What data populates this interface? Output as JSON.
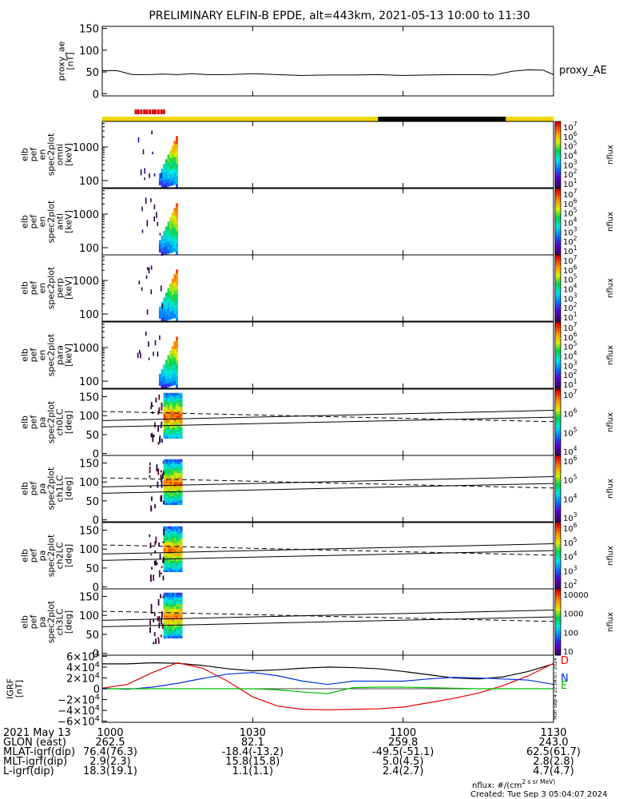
{
  "title": "PRELIMINARY ELFIN-B EPDE, alt=443km, 2021-05-13 10:00 to 11:30",
  "chart_data": {
    "type": "line",
    "time_range": [
      "10:00",
      "11:30"
    ],
    "x_ticks": [
      "1000",
      "1030",
      "1100",
      "1130"
    ],
    "x_tick_minutes": [
      0,
      30,
      60,
      90
    ],
    "proxy_ae": {
      "ylabel": [
        "proxy_ae",
        "[nT]"
      ],
      "legend": "proxy_AE",
      "ylim": [
        -5,
        155
      ],
      "yticks": [
        "150",
        "100",
        "50",
        "0"
      ],
      "ytick_values": [
        150,
        100,
        50,
        0
      ],
      "x_minutes": [
        0,
        3,
        6,
        9,
        12,
        15,
        18,
        21,
        25,
        30,
        35,
        40,
        45,
        50,
        55,
        60,
        65,
        70,
        75,
        78,
        82,
        85,
        88,
        90
      ],
      "values": [
        53,
        53,
        44,
        44,
        45,
        44,
        46,
        44,
        44,
        46,
        44,
        42,
        43,
        43,
        44,
        42,
        43,
        44,
        44,
        43,
        52,
        55,
        54,
        44
      ]
    },
    "status_bar": {
      "segments": [
        {
          "color": "#f2d400",
          "x_minutes": [
            0,
            55
          ]
        },
        {
          "color": "#000000",
          "x_minutes": [
            55,
            80.5
          ]
        },
        {
          "color": "#f2d400",
          "x_minutes": [
            80.5,
            90
          ]
        }
      ],
      "red_marks_x_minutes": [
        6.7,
        7.2,
        7.8,
        8.4,
        8.9,
        9.5,
        10.1,
        10.6,
        11.2,
        11.8,
        12.3
      ]
    },
    "spectrograms": [
      {
        "ylabel": [
          "elb",
          "pef",
          "en",
          "spec2plot",
          "omni",
          "[keV]"
        ],
        "type": "energy",
        "yticks": [
          "1000",
          "100"
        ],
        "log": true,
        "cb_ticks": [
          "10^7",
          "10^6",
          "10^5",
          "10^4",
          "10^3",
          "10^2",
          "10^1"
        ],
        "cb_label": "nflux"
      },
      {
        "ylabel": [
          "elb",
          "pef",
          "en",
          "spec2plot",
          "anti",
          "[keV]"
        ],
        "type": "energy",
        "yticks": [
          "1000",
          "100"
        ],
        "log": true,
        "cb_ticks": [
          "10^7",
          "10^6",
          "10^5",
          "10^4",
          "10^3",
          "10^2",
          "10^1"
        ],
        "cb_label": "nflux"
      },
      {
        "ylabel": [
          "elb",
          "pef",
          "en",
          "spec2plot",
          "perp",
          "[keV]"
        ],
        "type": "energy",
        "yticks": [
          "1000",
          "100"
        ],
        "log": true,
        "cb_ticks": [
          "10^7",
          "10^6",
          "10^5",
          "10^4",
          "10^3",
          "10^2",
          "10^1"
        ],
        "cb_label": "nflux"
      },
      {
        "ylabel": [
          "elb",
          "pef",
          "en",
          "spec2plot",
          "para",
          "[keV]"
        ],
        "type": "energy",
        "yticks": [
          "1000",
          "100"
        ],
        "log": true,
        "cb_ticks": [
          "10^7",
          "10^6",
          "10^5",
          "10^4",
          "10^3",
          "10^2",
          "10^1"
        ],
        "cb_label": "nflux"
      },
      {
        "ylabel": [
          "elb",
          "pef",
          "pa",
          "spec2plot",
          "ch0LC",
          "[deg]"
        ],
        "type": "pitch",
        "yticks": [
          "150",
          "100",
          "50",
          "0"
        ],
        "log": false,
        "cb_ticks": [
          "10^7",
          "10^6",
          "10^5",
          "10^4"
        ],
        "cb_label": "nflux"
      },
      {
        "ylabel": [
          "elb",
          "pef",
          "pa",
          "spec2plot",
          "ch1LC",
          "[deg]"
        ],
        "type": "pitch",
        "yticks": [
          "150",
          "100",
          "50",
          "0"
        ],
        "log": false,
        "cb_ticks": [
          "10^6",
          "10^5",
          "10^4",
          "10^3"
        ],
        "cb_label": "nflux"
      },
      {
        "ylabel": [
          "elb",
          "pef",
          "pa",
          "spec2plot",
          "ch2LC",
          "[deg]"
        ],
        "type": "pitch",
        "yticks": [
          "150",
          "100",
          "50",
          "0"
        ],
        "log": false,
        "cb_ticks": [
          "10^6",
          "10^5",
          "10^4",
          "10^3",
          "10^2"
        ],
        "cb_label": "nflux"
      },
      {
        "ylabel": [
          "elb",
          "pef",
          "pa",
          "spec2plot",
          "ch3LC",
          "[deg]"
        ],
        "type": "pitch",
        "yticks": [
          "150",
          "100",
          "50",
          "0"
        ],
        "log": false,
        "cb_ticks": [
          "10000",
          "1000",
          "100",
          "10"
        ],
        "cb_label": "nflux"
      }
    ],
    "pitch_lines": {
      "solid_upper_deg": [
        87,
        114
      ],
      "dashed_upper_deg": [
        111,
        84
      ],
      "solid_lower_deg": [
        70,
        96
      ]
    },
    "igrf": {
      "ylabel": [
        "IGRF",
        "[nT]"
      ],
      "ylim": [
        -62000,
        62000
      ],
      "yticks": [
        "6×10^4",
        "4×10^4",
        "2×10^4",
        "0",
        "−2×10^4",
        "−4×10^4",
        "−6×10^4"
      ],
      "ytick_values": [
        60000,
        40000,
        20000,
        0,
        -20000,
        -40000,
        -60000
      ],
      "legend": [
        {
          "label": "D",
          "color": "#e00000"
        },
        {
          "label": "N",
          "color": "#0030e0"
        },
        {
          "label": "E",
          "color": "#00c000"
        }
      ],
      "side_label": "Mon Sep  4 22:04:07 2024",
      "x_minutes": [
        0,
        5,
        10,
        15,
        20,
        25,
        30,
        35,
        40,
        45,
        50,
        55,
        60,
        65,
        70,
        75,
        80,
        85,
        90
      ],
      "series": [
        {
          "name": "black",
          "color": "#000000",
          "values": [
            46000,
            46000,
            48000,
            47000,
            43000,
            37000,
            33000,
            35000,
            38000,
            40000,
            39000,
            37000,
            32000,
            26000,
            20000,
            18000,
            22000,
            32000,
            46000
          ]
        },
        {
          "name": "D",
          "color": "#e00000",
          "values": [
            1000,
            8000,
            30000,
            48000,
            38000,
            14000,
            -15000,
            -32000,
            -38000,
            -39000,
            -38000,
            -37000,
            -34000,
            -26000,
            -18000,
            -8000,
            6000,
            24000,
            47000
          ]
        },
        {
          "name": "N",
          "color": "#0030e0",
          "values": [
            1000,
            -1000,
            3000,
            10000,
            19000,
            27000,
            30000,
            24000,
            14000,
            8000,
            14000,
            14000,
            14000,
            18000,
            21000,
            20000,
            18000,
            16000,
            8000
          ]
        },
        {
          "name": "E",
          "color": "#00c000",
          "values": [
            0,
            0,
            0,
            0,
            0,
            0,
            0,
            -2000,
            -6000,
            -9000,
            2000,
            3000,
            3000,
            2000,
            1000,
            0,
            0,
            0,
            0
          ]
        }
      ]
    }
  },
  "footer": {
    "rows": [
      {
        "label": "2021 May 13",
        "values": [
          "1000",
          "1030",
          "1100",
          "1130"
        ]
      },
      {
        "label": "GLON (east)",
        "values": [
          "262.5",
          "82.1",
          "259.8",
          "243.0"
        ]
      },
      {
        "label": "MLAT-igrf(dip)",
        "values": [
          "76.4(76.3)",
          "-18.4(-13.2)",
          "-49.5(-51.1)",
          "62.5(61.7)"
        ]
      },
      {
        "label": "MLT-igrf(dip)",
        "values": [
          "2.9(2.3)",
          "15.8(15.8)",
          "5.0(4.5)",
          "2.8(2.8)"
        ]
      },
      {
        "label": "L-igrf(dip)",
        "values": [
          "18.3(19.1)",
          "1.1(1.1)",
          "2.4(2.7)",
          "4.7(4.7)"
        ]
      }
    ],
    "units_note": "nflux: #/(cm^2 s sr MeV)",
    "created": "Created: Tue Sep  3 05:04:07 2024"
  }
}
